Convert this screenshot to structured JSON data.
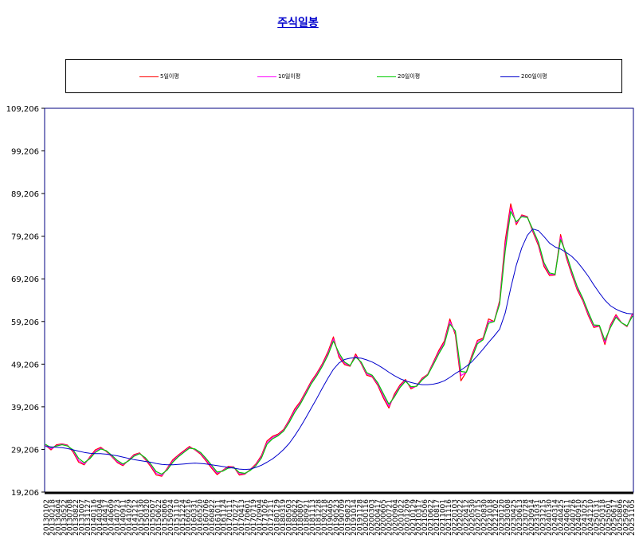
{
  "chart_data": {
    "type": "line",
    "title": "주식일봉",
    "subtitle": "",
    "xlabel": "",
    "ylabel": "",
    "ylim": [
      19206,
      109206
    ],
    "y_ticks": [
      "19,206",
      "29,206",
      "39,206",
      "49,206",
      "59,206",
      "69,206",
      "79,206",
      "89,206",
      "99,206",
      "109,206"
    ],
    "x_tick_labels": [
      "20130102",
      "20130218",
      "20130404",
      "20130522",
      "20130708",
      "20130822",
      "20131007",
      "20131127",
      "20140116",
      "20140304",
      "20140417",
      "20140609",
      "20140723",
      "20140911",
      "20141029",
      "20141212",
      "20150130",
      "20150320",
      "20150507",
      "20150622",
      "20150806",
      "20150924",
      "20151110",
      "20151224",
      "20160216",
      "20160331",
      "20160520",
      "20160706",
      "20160822",
      "20161011",
      "20161124",
      "20170111",
      "20170227",
      "20170413",
      "20170601",
      "20170719",
      "20170904",
      "20171026",
      "20171211",
      "20180129",
      "20180319",
      "20180503",
      "20180622",
      "20180807",
      "20180921",
      "20181113",
      "20181228",
      "20190218",
      "20190405",
      "20190523",
      "20190709",
      "20190823",
      "20191014",
      "20191128",
      "20200116",
      "20200303",
      "20200417",
      "20200605",
      "20200721",
      "20200904",
      "20201022",
      "20201209",
      "20210129",
      "20210317",
      "20210506",
      "20210622",
      "20210817",
      "20211001",
      "20211116",
      "20220103",
      "20220222",
      "20220412",
      "20220530",
      "20220715",
      "20220830",
      "20221018",
      "20221202",
      "20230120",
      "20230308",
      "20230425",
      "20230613",
      "20230728",
      "20230914",
      "20231031",
      "20231215",
      "20240130",
      "20240314",
      "20240425",
      "20240611",
      "20240726",
      "20240910",
      "20241025",
      "20241210",
      "20250131",
      "20250318",
      "20250501",
      "20250617",
      "20250806",
      "20250922",
      "20251105"
    ],
    "legend_position": "top",
    "grid": false,
    "series": [
      {
        "name": "5일이평",
        "color": "#ff0000",
        "values": [
          30200,
          29100,
          30300,
          30500,
          30200,
          28600,
          26200,
          25600,
          27400,
          29100,
          29700,
          28700,
          27500,
          26100,
          25400,
          26700,
          28000,
          28400,
          26900,
          25200,
          23200,
          22900,
          24800,
          26800,
          27900,
          28900,
          29900,
          29100,
          28100,
          26500,
          24800,
          23300,
          24300,
          25200,
          25100,
          23200,
          23400,
          24500,
          25800,
          27800,
          31200,
          32300,
          32800,
          33900,
          36100,
          38700,
          40400,
          42800,
          45200,
          47100,
          49300,
          52100,
          55600,
          50800,
          49100,
          48700,
          51600,
          49300,
          46600,
          46200,
          44200,
          41300,
          38900,
          42200,
          44300,
          45600,
          43400,
          44100,
          45900,
          46800,
          49600,
          52400,
          54600,
          59800,
          56100,
          45300,
          47400,
          51400,
          54800,
          55300,
          59800,
          59200,
          64100,
          78200,
          86800,
          81900,
          84200,
          83800,
          80200,
          77000,
          72100,
          70000,
          70100,
          79600,
          74300,
          70300,
          66600,
          64100,
          60600,
          57800,
          58100,
          53800,
          58400,
          60800,
          58900,
          58000,
          61100
        ]
      },
      {
        "name": "10일이평",
        "color": "#ff00ff",
        "values": [
          30300,
          29300,
          30100,
          30400,
          30100,
          28900,
          26600,
          25800,
          27200,
          28800,
          29500,
          28800,
          27600,
          26300,
          25600,
          26600,
          27800,
          28300,
          27100,
          25500,
          23600,
          23100,
          24600,
          26500,
          27700,
          28700,
          29700,
          29200,
          28300,
          26800,
          25100,
          23600,
          24200,
          25000,
          25100,
          23500,
          23500,
          24400,
          25600,
          27500,
          30800,
          32000,
          32600,
          33700,
          35800,
          38300,
          40100,
          42500,
          44900,
          46800,
          49000,
          51700,
          55100,
          51300,
          49400,
          48800,
          51200,
          49500,
          46900,
          46400,
          44500,
          41800,
          39300,
          41800,
          44000,
          45400,
          43700,
          44000,
          45700,
          46700,
          49300,
          52000,
          54200,
          59200,
          56600,
          46500,
          47300,
          51000,
          54400,
          55100,
          59300,
          59200,
          63700,
          76900,
          85900,
          82300,
          84000,
          83700,
          80500,
          77400,
          72600,
          70300,
          70200,
          79000,
          74800,
          70700,
          67000,
          64400,
          61000,
          58100,
          58200,
          54300,
          58100,
          60500,
          58900,
          58100,
          60800
        ]
      },
      {
        "name": "20일이평",
        "color": "#00cc00",
        "values": [
          30400,
          29600,
          30000,
          30300,
          30000,
          29100,
          27100,
          26100,
          27000,
          28500,
          29300,
          28900,
          27800,
          26600,
          25800,
          26500,
          27600,
          28200,
          27300,
          25800,
          24000,
          23400,
          24400,
          26200,
          27500,
          28500,
          29500,
          29300,
          28500,
          27100,
          25500,
          23900,
          24100,
          24800,
          25000,
          23800,
          23600,
          24300,
          25400,
          27200,
          30400,
          31700,
          32400,
          33500,
          35500,
          37900,
          39800,
          42200,
          44600,
          46500,
          48700,
          51300,
          54600,
          51800,
          49700,
          48900,
          50900,
          49700,
          47200,
          46600,
          44800,
          42300,
          39800,
          41500,
          43700,
          45200,
          43900,
          44000,
          45500,
          46600,
          49000,
          51600,
          53800,
          58600,
          57000,
          47500,
          47300,
          50700,
          54000,
          54900,
          58800,
          59200,
          63300,
          75700,
          85000,
          82600,
          83800,
          83600,
          80800,
          77800,
          73000,
          70600,
          70300,
          78400,
          75200,
          71100,
          67400,
          64700,
          61400,
          58400,
          58300,
          54800,
          57800,
          60200,
          58900,
          58200,
          60500
        ]
      },
      {
        "name": "200일이평",
        "color": "#0000cc",
        "values": [
          29900,
          29800,
          29700,
          29600,
          29400,
          29100,
          28800,
          28500,
          28300,
          28200,
          28200,
          28100,
          27900,
          27700,
          27400,
          27100,
          26800,
          26600,
          26400,
          26200,
          25900,
          25700,
          25600,
          25600,
          25700,
          25800,
          25900,
          26000,
          25900,
          25800,
          25600,
          25400,
          25200,
          25000,
          24800,
          24600,
          24500,
          24600,
          25000,
          25500,
          26200,
          27000,
          28000,
          29200,
          30600,
          32400,
          34400,
          36600,
          38900,
          41200,
          43600,
          45900,
          48000,
          49500,
          50300,
          50600,
          50700,
          50600,
          50200,
          49700,
          49000,
          48200,
          47300,
          46500,
          45800,
          45300,
          44900,
          44600,
          44400,
          44400,
          44500,
          44800,
          45300,
          46100,
          47000,
          47800,
          48700,
          49800,
          51200,
          52700,
          54300,
          55800,
          57400,
          61200,
          67000,
          72400,
          76500,
          79400,
          80900,
          80500,
          79100,
          77600,
          76700,
          76200,
          75400,
          74500,
          73200,
          71600,
          69800,
          67800,
          65900,
          64200,
          62900,
          62100,
          61500,
          61100,
          61000
        ]
      }
    ]
  }
}
